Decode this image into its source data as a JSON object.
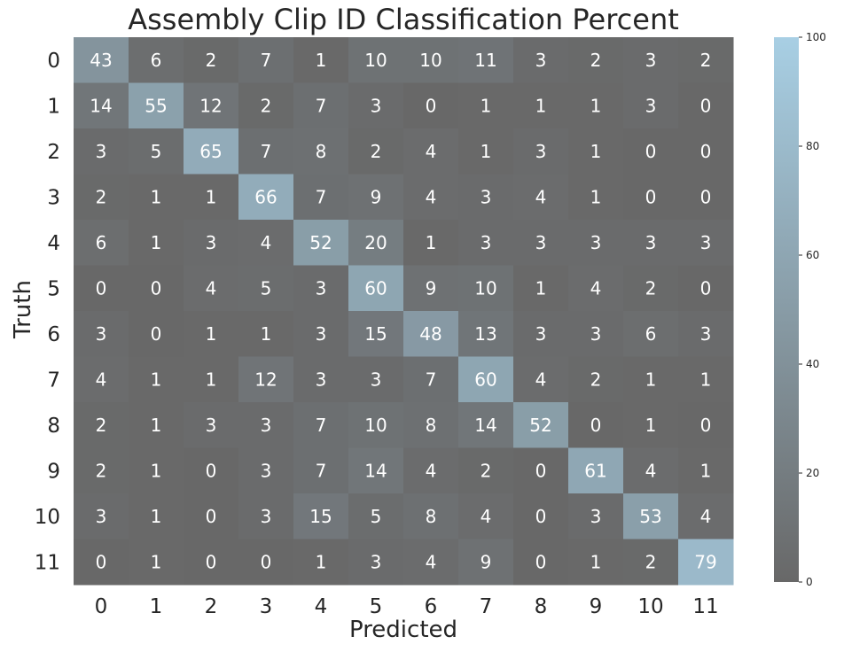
{
  "chart_data": {
    "type": "heatmap",
    "title": "Assembly Clip ID Classification Percent",
    "xlabel": "Predicted",
    "ylabel": "Truth",
    "x_categories": [
      "0",
      "1",
      "2",
      "3",
      "4",
      "5",
      "6",
      "7",
      "8",
      "9",
      "10",
      "11"
    ],
    "y_categories": [
      "0",
      "1",
      "2",
      "3",
      "4",
      "5",
      "6",
      "7",
      "8",
      "9",
      "10",
      "11"
    ],
    "values": [
      [
        43,
        6,
        2,
        7,
        1,
        10,
        10,
        11,
        3,
        2,
        3,
        2
      ],
      [
        14,
        55,
        12,
        2,
        7,
        3,
        0,
        1,
        1,
        1,
        3,
        0
      ],
      [
        3,
        5,
        65,
        7,
        8,
        2,
        4,
        1,
        3,
        1,
        0,
        0
      ],
      [
        2,
        1,
        1,
        66,
        7,
        9,
        4,
        3,
        4,
        1,
        0,
        0
      ],
      [
        6,
        1,
        3,
        4,
        52,
        20,
        1,
        3,
        3,
        3,
        3,
        3
      ],
      [
        0,
        0,
        4,
        5,
        3,
        60,
        9,
        10,
        1,
        4,
        2,
        0
      ],
      [
        3,
        0,
        1,
        1,
        3,
        15,
        48,
        13,
        3,
        3,
        6,
        3
      ],
      [
        4,
        1,
        1,
        12,
        3,
        3,
        7,
        60,
        4,
        2,
        1,
        1
      ],
      [
        2,
        1,
        3,
        3,
        7,
        10,
        8,
        14,
        52,
        0,
        1,
        0
      ],
      [
        2,
        1,
        0,
        3,
        7,
        14,
        4,
        2,
        0,
        61,
        4,
        1
      ],
      [
        3,
        1,
        0,
        3,
        15,
        5,
        8,
        4,
        0,
        3,
        53,
        4
      ],
      [
        0,
        1,
        0,
        0,
        1,
        3,
        4,
        9,
        0,
        1,
        2,
        79
      ]
    ],
    "colorbar": {
      "min": 0,
      "max": 100,
      "ticks": [
        "0",
        "20",
        "40",
        "60",
        "80",
        "100"
      ]
    },
    "colors": {
      "low": "#686868",
      "high": "#a8cfe4",
      "cell_text": "#ffffff",
      "text": "#262626"
    }
  }
}
